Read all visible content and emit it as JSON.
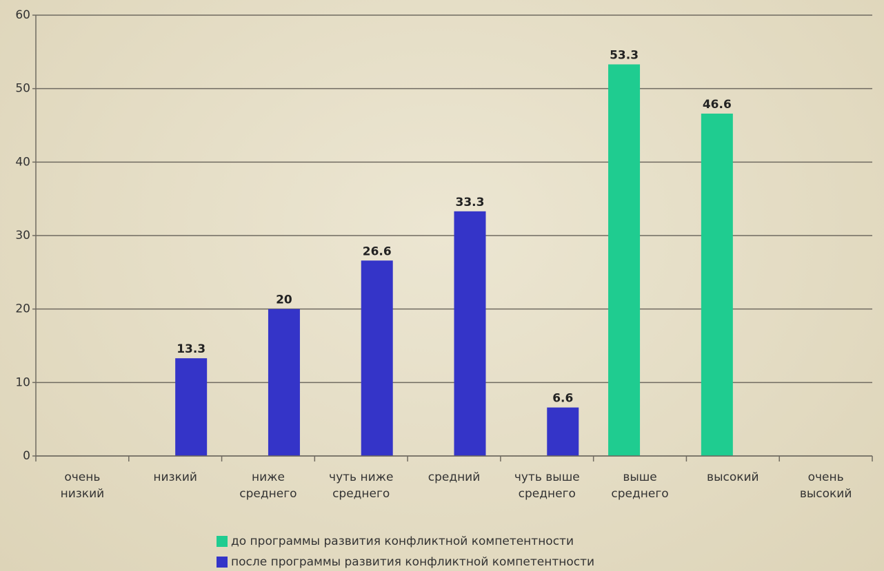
{
  "chart_data": {
    "type": "bar",
    "categories": [
      "очень\nнизкий",
      "низкий",
      "ниже\nсреднего",
      "чуть ниже\nсреднего",
      "средний",
      "чуть выше\nсреднего",
      "выше\nсреднего",
      "высокий",
      "очень\nвысокий"
    ],
    "series": [
      {
        "name": "до программы развития конфликтной компетентности",
        "color": "#1fcc90",
        "values": [
          null,
          null,
          null,
          null,
          null,
          null,
          53.3,
          46.6,
          null
        ]
      },
      {
        "name": "после программы развития конфликтной компетентности",
        "color": "#3434c8",
        "values": [
          null,
          13.3,
          20,
          26.6,
          33.3,
          6.6,
          null,
          null,
          null
        ]
      }
    ],
    "ylim": [
      0,
      60
    ],
    "yticks": [
      0,
      10,
      20,
      30,
      40,
      50,
      60
    ],
    "grid": true,
    "legend": "bottom"
  }
}
